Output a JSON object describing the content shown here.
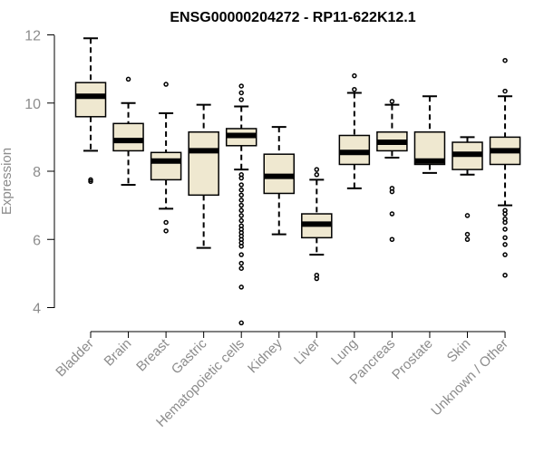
{
  "chart_data": {
    "type": "box",
    "title": "ENSG00000204272 - RP11-622K12.1",
    "xlabel": "",
    "ylabel": "Expression",
    "ylim": [
      3.4,
      12.2
    ],
    "yticks": [
      4,
      6,
      8,
      10,
      12
    ],
    "grid": false,
    "box_fill": "#efe8d0",
    "box_stroke": "#000000",
    "categories": [
      {
        "name": "Bladder",
        "whisker_low": 8.6,
        "q1": 9.6,
        "median": 10.2,
        "q3": 10.6,
        "whisker_high": 11.9,
        "outliers": [
          7.7,
          7.75
        ]
      },
      {
        "name": "Brain",
        "whisker_low": 7.6,
        "q1": 8.6,
        "median": 8.9,
        "q3": 9.4,
        "whisker_high": 10.0,
        "outliers": [
          10.7
        ]
      },
      {
        "name": "Breast",
        "whisker_low": 6.9,
        "q1": 7.75,
        "median": 8.3,
        "q3": 8.55,
        "whisker_high": 9.7,
        "outliers": [
          10.55,
          6.5,
          6.25
        ]
      },
      {
        "name": "Gastric",
        "whisker_low": 5.75,
        "q1": 7.3,
        "median": 8.6,
        "q3": 9.15,
        "whisker_high": 9.95,
        "outliers": []
      },
      {
        "name": "Hematopoietic cells",
        "whisker_low": 8.05,
        "q1": 8.75,
        "median": 9.05,
        "q3": 9.25,
        "whisker_high": 9.9,
        "outliers": [
          10.5,
          10.3,
          10.1,
          7.9,
          7.8,
          7.6,
          7.45,
          7.3,
          7.15,
          7.0,
          6.85,
          6.7,
          6.55,
          6.4,
          6.3,
          6.2,
          6.1,
          6.0,
          5.9,
          5.8,
          5.55,
          5.3,
          5.15,
          4.6,
          3.55
        ]
      },
      {
        "name": "Kidney",
        "whisker_low": 6.15,
        "q1": 7.35,
        "median": 7.85,
        "q3": 8.5,
        "whisker_high": 9.3,
        "outliers": []
      },
      {
        "name": "Liver",
        "whisker_low": 5.55,
        "q1": 6.05,
        "median": 6.45,
        "q3": 6.75,
        "whisker_high": 7.75,
        "outliers": [
          8.05,
          7.9,
          4.95,
          4.85
        ]
      },
      {
        "name": "Lung",
        "whisker_low": 7.5,
        "q1": 8.2,
        "median": 8.55,
        "q3": 9.05,
        "whisker_high": 10.3,
        "outliers": [
          10.8,
          10.4
        ]
      },
      {
        "name": "Pancreas",
        "whisker_low": 8.4,
        "q1": 8.6,
        "median": 8.85,
        "q3": 9.15,
        "whisker_high": 9.95,
        "outliers": [
          10.05,
          7.5,
          7.4,
          6.75,
          6.0
        ]
      },
      {
        "name": "Prostate",
        "whisker_low": 7.95,
        "q1": 8.2,
        "median": 8.3,
        "q3": 9.15,
        "whisker_high": 10.2,
        "outliers": []
      },
      {
        "name": "Skin",
        "whisker_low": 7.9,
        "q1": 8.05,
        "median": 8.5,
        "q3": 8.85,
        "whisker_high": 9.0,
        "outliers": [
          6.7,
          6.15,
          6.0
        ]
      },
      {
        "name": "Unknown / Other",
        "whisker_low": 7.0,
        "q1": 8.2,
        "median": 8.6,
        "q3": 9.0,
        "whisker_high": 10.2,
        "outliers": [
          11.25,
          10.35,
          6.85,
          6.75,
          6.6,
          6.5,
          6.3,
          6.05,
          5.85,
          5.55,
          4.95
        ]
      }
    ]
  }
}
